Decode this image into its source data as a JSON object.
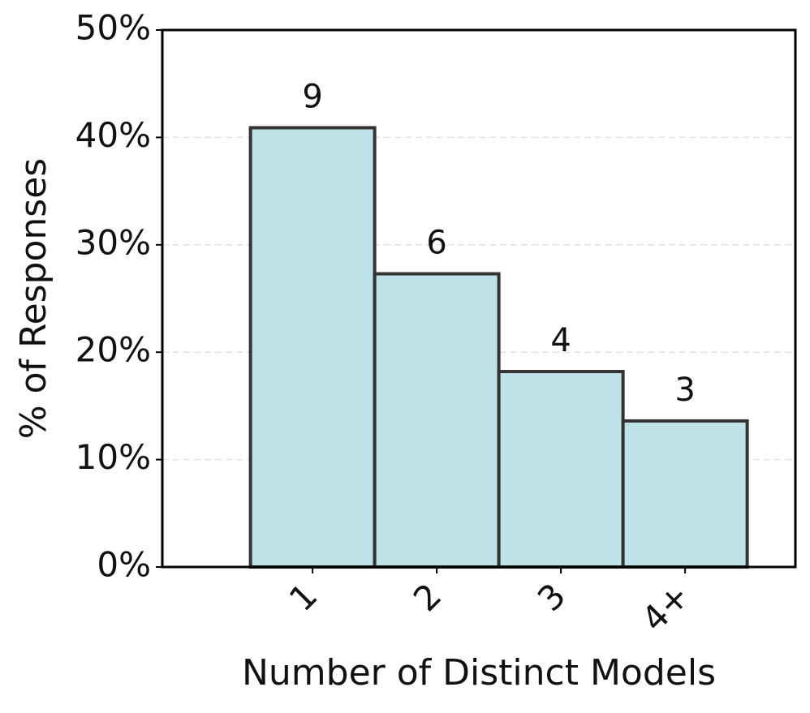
{
  "chart_data": {
    "type": "bar",
    "x_label": "Number of Distinct Models",
    "y_label": "% of Responses",
    "categories": [
      "1",
      "2",
      "3",
      "4+"
    ],
    "values": [
      40.9,
      27.3,
      18.2,
      13.6
    ],
    "counts": [
      9,
      6,
      4,
      3
    ],
    "color": "#bde2e8",
    "edge_color": "#333333",
    "ylim": [
      0,
      50
    ],
    "yticks": [
      {
        "value": 0,
        "label": "0%"
      },
      {
        "value": 10,
        "label": "10%"
      },
      {
        "value": 20,
        "label": "20%"
      },
      {
        "value": 30,
        "label": "30%"
      },
      {
        "value": 40,
        "label": "40%"
      },
      {
        "value": 50,
        "label": "50%"
      }
    ],
    "grid": true
  }
}
